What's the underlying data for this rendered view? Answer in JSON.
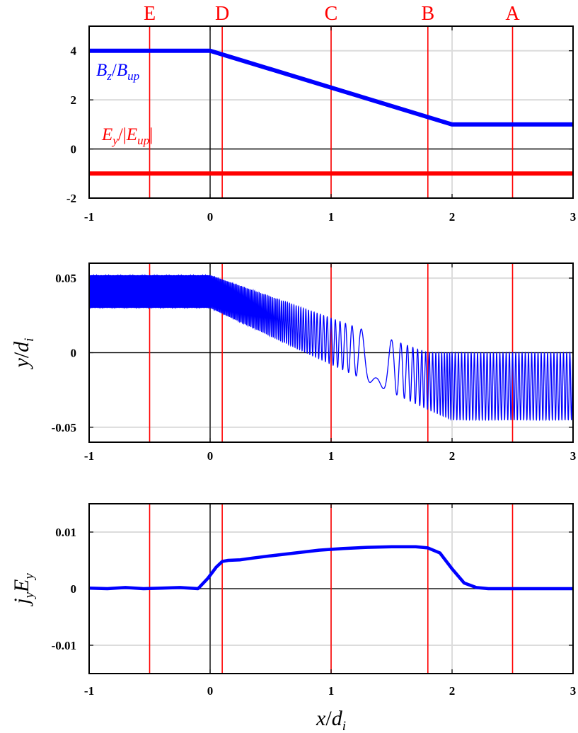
{
  "chart_data": [
    {
      "type": "line",
      "panel": "top",
      "xlim": [
        -1,
        3
      ],
      "ylim": [
        -2,
        5
      ],
      "xticks": [
        "-1",
        "0",
        "1",
        "2",
        "3"
      ],
      "yticks": [
        "-2",
        "0",
        "2",
        "4"
      ],
      "xlabel": "",
      "ylabel": "",
      "grid": true,
      "vertical_markers": [
        {
          "label": "E",
          "x": -0.5
        },
        {
          "label": "D",
          "x": 0.1
        },
        {
          "label": "C",
          "x": 1.0
        },
        {
          "label": "B",
          "x": 1.8
        },
        {
          "label": "A",
          "x": 2.5
        }
      ],
      "series": [
        {
          "name": "B_z/B_up",
          "color": "#0000ff",
          "x": [
            -1,
            0,
            2,
            3
          ],
          "y": [
            4,
            4,
            1,
            1
          ]
        },
        {
          "name": "E_y/|E_up|",
          "color": "#ff0000",
          "x": [
            -1,
            3
          ],
          "y": [
            -1,
            -1
          ]
        }
      ]
    },
    {
      "type": "line",
      "panel": "middle",
      "xlim": [
        -1,
        3
      ],
      "ylim": [
        -0.06,
        0.06
      ],
      "xticks": [
        "-1",
        "0",
        "1",
        "2",
        "3"
      ],
      "yticks": [
        "-0.05",
        "0",
        "0.05"
      ],
      "xlabel": "",
      "ylabel": "y/d_i",
      "grid": true,
      "series": [
        {
          "name": "",
          "color": "#0000ff",
          "x": [
            -1,
            0,
            1.8,
            2,
            3
          ],
          "y_top": [
            0.052,
            0.052,
            0.0,
            0.0,
            0.0
          ],
          "y_bottom": [
            0.03,
            0.03,
            -0.038,
            -0.045,
            -0.045
          ]
        }
      ]
    },
    {
      "type": "line",
      "panel": "bottom",
      "xlim": [
        -1,
        3
      ],
      "ylim": [
        -0.015,
        0.015
      ],
      "xticks": [
        "-1",
        "0",
        "1",
        "2",
        "3"
      ],
      "yticks": [
        "-0.01",
        "0",
        "0.01"
      ],
      "xlabel": "x/d_i",
      "ylabel": "j_y E_y",
      "grid": true,
      "series": [
        {
          "name": "",
          "color": "#0000ff",
          "x": [
            -1,
            -0.85,
            -0.7,
            -0.55,
            -0.4,
            -0.25,
            -0.1,
            -0.02,
            0.05,
            0.1,
            0.15,
            0.25,
            0.35,
            0.5,
            0.7,
            0.9,
            1.1,
            1.3,
            1.5,
            1.7,
            1.8,
            1.9,
            2.0,
            2.1,
            2.2,
            2.3,
            2.5,
            2.7,
            3.0
          ],
          "y": [
            0.0001,
            0.0,
            0.0002,
            0.0,
            0.0001,
            0.0002,
            0.0,
            0.0018,
            0.0038,
            0.0048,
            0.005,
            0.0051,
            0.0054,
            0.0058,
            0.0063,
            0.0068,
            0.0071,
            0.0073,
            0.0074,
            0.0074,
            0.0072,
            0.0063,
            0.0035,
            0.001,
            0.0002,
            0.0,
            0.0,
            0.0,
            0.0
          ]
        }
      ]
    }
  ],
  "annotations": {
    "bz_label": "B_z/B_up",
    "ey_label": "E_y/|E_up|"
  }
}
